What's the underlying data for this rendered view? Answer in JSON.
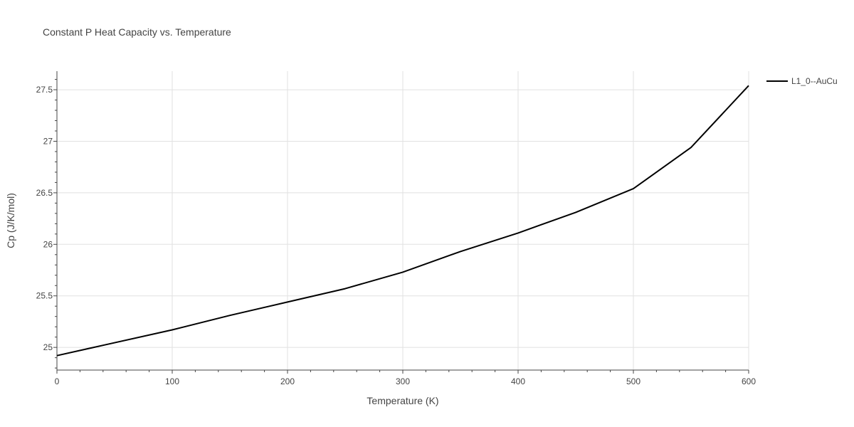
{
  "chart_data": {
    "type": "line",
    "title": "Constant P Heat Capacity vs. Temperature",
    "xlabel": "Temperature (K)",
    "ylabel": "Cp (J/K/mol)",
    "xlim": [
      0,
      600
    ],
    "ylim": [
      24.78,
      27.68
    ],
    "x_ticks": [
      "0",
      "100",
      "200",
      "300",
      "400",
      "500",
      "600"
    ],
    "y_ticks": [
      "25",
      "25.5",
      "26",
      "26.5",
      "27",
      "27.5"
    ],
    "grid": true,
    "legend_position": "top-right",
    "series": [
      {
        "name": "L1_0--AuCu",
        "color": "#000000",
        "x": [
          0,
          40,
          100,
          150,
          200,
          250,
          300,
          350,
          400,
          450,
          500,
          550,
          600
        ],
        "y": [
          24.92,
          25.02,
          25.17,
          25.31,
          25.44,
          25.57,
          25.73,
          25.93,
          26.11,
          26.31,
          26.54,
          26.94,
          27.54
        ]
      }
    ]
  }
}
